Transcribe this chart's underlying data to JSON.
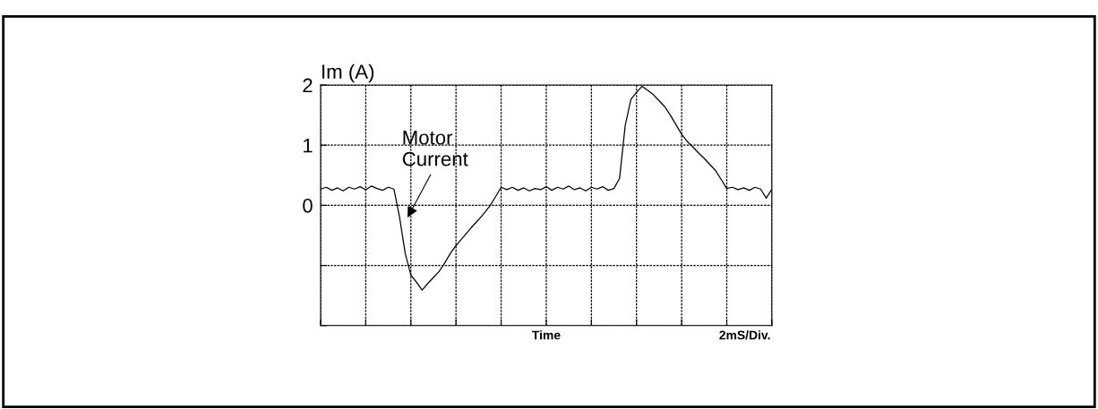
{
  "chart_data": {
    "type": "line",
    "xlabel": "Time",
    "ylabel": "Im (A)",
    "annotations": [
      "Motor\nCurrent",
      "2mS/Div."
    ],
    "categories": [
      null,
      null,
      null,
      null,
      null,
      null,
      null,
      null,
      null,
      null,
      null,
      null,
      null,
      null,
      null,
      null,
      null,
      null,
      null,
      null,
      null,
      null,
      null,
      null,
      null,
      null,
      null,
      null,
      null,
      null,
      null,
      null,
      null,
      null,
      null,
      null,
      null,
      null,
      null,
      null,
      null,
      null,
      null,
      null,
      null,
      null,
      null,
      null,
      null,
      null,
      null,
      null,
      null,
      null,
      null,
      null,
      null,
      null,
      null,
      null,
      null,
      null,
      null,
      null,
      null,
      null,
      null,
      null,
      null,
      null,
      null,
      null,
      null,
      null,
      null,
      null,
      null,
      null,
      null,
      null,
      null
    ],
    "ylim": [
      -2,
      2
    ],
    "yticks": [
      {
        "value": -2,
        "label": null
      },
      {
        "value": -1,
        "label": null
      },
      0,
      1,
      2
    ],
    "tick_labels": "y",
    "grid": true,
    "marker": "none",
    "line_style": "solid",
    "series": [
      {
        "color": "#000000",
        "values": [
          0.27,
          0.3,
          0.25,
          0.29,
          0.24,
          0.3,
          0.27,
          0.31,
          0.26,
          0.32,
          0.28,
          0.25,
          0.3,
          0.27,
          -0.2,
          -0.8,
          -1.16,
          -1.28,
          -1.41,
          -1.3,
          -1.2,
          -1.1,
          -0.96,
          -0.8,
          -0.67,
          -0.56,
          -0.45,
          -0.34,
          -0.24,
          -0.13,
          -0.01,
          0.14,
          0.3,
          0.26,
          0.3,
          0.25,
          0.29,
          0.24,
          0.28,
          0.26,
          0.31,
          0.25,
          0.3,
          0.27,
          0.32,
          0.26,
          0.29,
          0.24,
          0.3,
          0.27,
          0.31,
          0.25,
          0.28,
          0.45,
          1.33,
          1.76,
          1.88,
          1.98,
          1.91,
          1.84,
          1.74,
          1.64,
          1.5,
          1.34,
          1.18,
          1.06,
          0.97,
          0.87,
          0.78,
          0.68,
          0.58,
          0.43,
          0.28,
          0.3,
          0.26,
          0.29,
          0.25,
          0.3,
          0.27,
          0.12,
          0.27
        ]
      }
    ]
  }
}
